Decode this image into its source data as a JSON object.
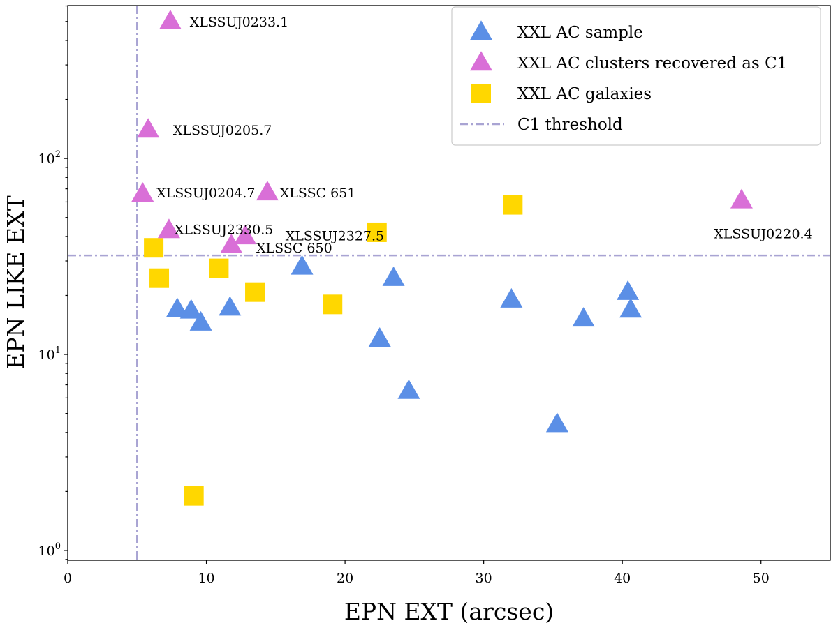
{
  "chart_data": {
    "type": "scatter",
    "xlabel": "EPN EXT (arcsec)",
    "ylabel": "EPN LIKE EXT",
    "xlim": [
      0,
      55
    ],
    "ylim_log10": [
      -0.05,
      2.78
    ],
    "yscale": "log",
    "x_ticks": [
      0,
      10,
      20,
      30,
      40,
      50
    ],
    "y_ticks": [
      {
        "value": 1,
        "base": "10",
        "exp": "0"
      },
      {
        "value": 10,
        "base": "10",
        "exp": "1"
      },
      {
        "value": 100,
        "base": "10",
        "exp": "2"
      }
    ],
    "thresholds": {
      "x": 5,
      "y": 32,
      "label": "C1 threshold",
      "color": "#a9a4d3"
    },
    "legend_position": "top-right",
    "series": [
      {
        "name": "XXL AC sample",
        "marker": "triangle",
        "color": "#5b8fe6",
        "points": [
          {
            "x": 7.9,
            "y": 17.0
          },
          {
            "x": 8.9,
            "y": 16.7
          },
          {
            "x": 9.6,
            "y": 14.5
          },
          {
            "x": 11.7,
            "y": 17.3
          },
          {
            "x": 16.9,
            "y": 28.0
          },
          {
            "x": 22.5,
            "y": 12.0
          },
          {
            "x": 23.5,
            "y": 24.5
          },
          {
            "x": 24.6,
            "y": 6.5
          },
          {
            "x": 32.0,
            "y": 19.0
          },
          {
            "x": 35.3,
            "y": 4.4
          },
          {
            "x": 37.2,
            "y": 15.2
          },
          {
            "x": 40.4,
            "y": 20.8
          },
          {
            "x": 40.6,
            "y": 16.9
          }
        ]
      },
      {
        "name": "XXL AC clusters recovered as C1",
        "marker": "triangle",
        "color": "#d96fd7",
        "points": [
          {
            "x": 7.4,
            "y": 500,
            "label": "XLSSUJ0233.1"
          },
          {
            "x": 5.8,
            "y": 140,
            "label": "XLSSUJ0205.7"
          },
          {
            "x": 5.4,
            "y": 66,
            "label": "XLSSUJ0204.7"
          },
          {
            "x": 14.4,
            "y": 67,
            "label": "XLSSC 651"
          },
          {
            "x": 7.3,
            "y": 43,
            "label": "XLSSUJ2330.5"
          },
          {
            "x": 12.8,
            "y": 40,
            "label": "XLSSUJ2327.5"
          },
          {
            "x": 11.8,
            "y": 36,
            "label": "XLSSC 650"
          },
          {
            "x": 48.6,
            "y": 61,
            "label": "XLSSUJ0220.4"
          }
        ]
      },
      {
        "name": "XXL AC galaxies",
        "marker": "square",
        "color": "#ffd700",
        "points": [
          {
            "x": 6.2,
            "y": 35
          },
          {
            "x": 6.6,
            "y": 24.5
          },
          {
            "x": 10.9,
            "y": 27.5
          },
          {
            "x": 13.5,
            "y": 20.8
          },
          {
            "x": 19.1,
            "y": 18.0
          },
          {
            "x": 22.3,
            "y": 42
          },
          {
            "x": 32.1,
            "y": 58
          },
          {
            "x": 9.1,
            "y": 1.9
          }
        ]
      }
    ],
    "annotations": [
      {
        "text": "XLSSUJ0233.1",
        "x": 8.8,
        "y": 500
      },
      {
        "text": "XLSSUJ0205.7",
        "x": 7.6,
        "y": 140
      },
      {
        "text": "XLSSUJ0204.7",
        "x": 6.4,
        "y": 67
      },
      {
        "text": "XLSSC 651",
        "x": 15.3,
        "y": 67
      },
      {
        "text": "XLSSUJ2330.5",
        "x": 7.7,
        "y": 43.5
      },
      {
        "text": "XLSSUJ2327.5",
        "x": 15.7,
        "y": 40.5
      },
      {
        "text": "XLSSC 650",
        "x": 13.6,
        "y": 35
      },
      {
        "text": "XLSSUJ0220.4",
        "x": 46.6,
        "y": 41.5
      }
    ]
  }
}
